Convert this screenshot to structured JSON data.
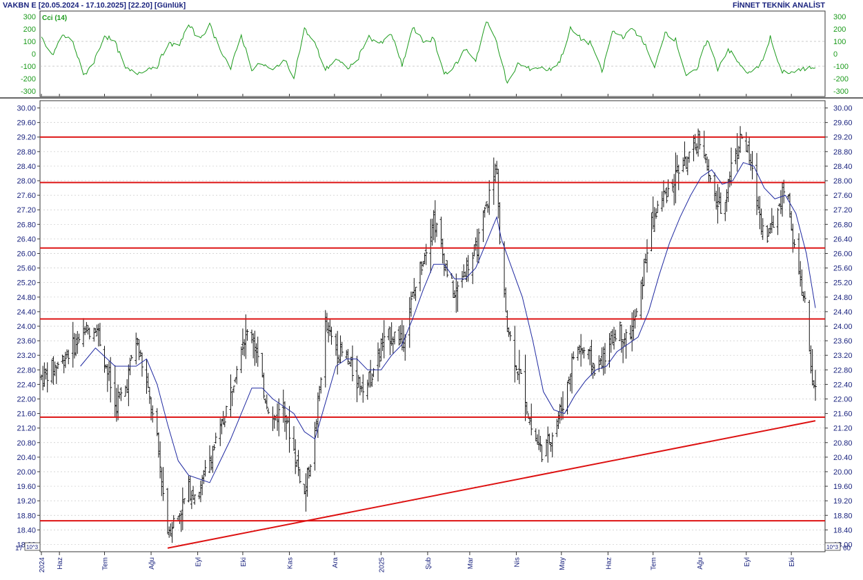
{
  "header": {
    "title": "VAKBN E  [20.05.2024 - 17.10.2025]  [22.20]  [Günlük]",
    "brand": "FİNNET TEKNİK ANALİST"
  },
  "indicator": {
    "label": "Cci (14)",
    "ticks": [
      "300",
      "200",
      "100",
      "0",
      "-100",
      "-200",
      "-300"
    ],
    "tick_values": [
      300,
      200,
      100,
      0,
      -100,
      -200,
      -300
    ],
    "color": "#1a9a1a"
  },
  "price_axis": {
    "ticks": [
      "30.00",
      "29.60",
      "29.20",
      "28.80",
      "28.40",
      "28.00",
      "27.60",
      "27.20",
      "26.80",
      "26.40",
      "26.00",
      "25.60",
      "25.20",
      "24.80",
      "24.40",
      "24.00",
      "23.60",
      "23.20",
      "22.80",
      "22.40",
      "22.00",
      "21.60",
      "21.20",
      "20.80",
      "20.40",
      "20.00",
      "19.60",
      "19.20",
      "18.80",
      "18.40",
      "18.00"
    ],
    "multiplier_label": "10^3",
    "left_cut_label": "17",
    "right_cut_label": "60"
  },
  "time_axis": {
    "labels": [
      "2024",
      "Haz",
      "Tem",
      "Ağu",
      "Eyl",
      "Eki",
      "Kas",
      "Ara",
      "2025",
      "Şub",
      "Mar",
      "Nis",
      "May",
      "Haz",
      "Tem",
      "Ağu",
      "Eyl",
      "Eki"
    ]
  },
  "chart_data": {
    "type": "bar",
    "symbol": "VAKBN E",
    "period": "20.05.2024 - 17.10.2025",
    "last_price": 22.2,
    "interval": "Günlük",
    "ylim": [
      17.8,
      30.2
    ],
    "grid": true,
    "horizontal_levels": [
      29.2,
      27.95,
      26.15,
      24.2,
      21.5,
      18.65
    ],
    "trendline": {
      "start": {
        "date": "2024-08-12",
        "value": 17.9
      },
      "end": {
        "date": "2025-10-17",
        "value": 21.4
      }
    },
    "moving_average_color": "#1e28a0",
    "level_color": "#dd1111",
    "cci_ylim": [
      -300,
      300
    ],
    "price_path": [
      [
        "2024-05-20",
        22.6
      ],
      [
        "2024-06-01",
        23.0
      ],
      [
        "2024-06-15",
        23.7
      ],
      [
        "2024-06-25",
        24.1
      ],
      [
        "2024-07-01",
        23.1
      ],
      [
        "2024-07-08",
        21.8
      ],
      [
        "2024-07-15",
        22.3
      ],
      [
        "2024-07-22",
        23.7
      ],
      [
        "2024-07-29",
        22.4
      ],
      [
        "2024-08-05",
        20.8
      ],
      [
        "2024-08-12",
        18.4
      ],
      [
        "2024-08-19",
        18.8
      ],
      [
        "2024-08-26",
        19.5
      ],
      [
        "2024-09-02",
        19.4
      ],
      [
        "2024-09-09",
        20.4
      ],
      [
        "2024-09-16",
        21.1
      ],
      [
        "2024-09-23",
        22.2
      ],
      [
        "2024-09-30",
        23.6
      ],
      [
        "2024-10-07",
        23.9
      ],
      [
        "2024-10-14",
        22.4
      ],
      [
        "2024-10-21",
        21.4
      ],
      [
        "2024-10-28",
        21.8
      ],
      [
        "2024-11-04",
        20.6
      ],
      [
        "2024-11-11",
        19.4
      ],
      [
        "2024-11-18",
        21.0
      ],
      [
        "2024-11-25",
        24.0
      ],
      [
        "2024-12-02",
        23.4
      ],
      [
        "2024-12-09",
        23.1
      ],
      [
        "2024-12-16",
        22.5
      ],
      [
        "2024-12-23",
        22.4
      ],
      [
        "2025-01-01",
        23.4
      ],
      [
        "2025-01-08",
        23.8
      ],
      [
        "2025-01-15",
        23.6
      ],
      [
        "2025-01-22",
        24.8
      ],
      [
        "2025-01-29",
        25.9
      ],
      [
        "2025-02-05",
        27.0
      ],
      [
        "2025-02-12",
        25.8
      ],
      [
        "2025-02-19",
        24.8
      ],
      [
        "2025-02-26",
        25.6
      ],
      [
        "2025-03-05",
        26.0
      ],
      [
        "2025-03-12",
        27.3
      ],
      [
        "2025-03-19",
        28.4
      ],
      [
        "2025-03-22",
        25.2
      ],
      [
        "2025-03-29",
        23.4
      ],
      [
        "2025-04-05",
        22.4
      ],
      [
        "2025-04-12",
        21.0
      ],
      [
        "2025-04-19",
        20.5
      ],
      [
        "2025-04-26",
        21.2
      ],
      [
        "2025-05-03",
        22.0
      ],
      [
        "2025-05-10",
        23.4
      ],
      [
        "2025-05-17",
        23.3
      ],
      [
        "2025-05-24",
        22.8
      ],
      [
        "2025-05-31",
        23.3
      ],
      [
        "2025-06-07",
        24.0
      ],
      [
        "2025-06-14",
        23.6
      ],
      [
        "2025-06-21",
        24.4
      ],
      [
        "2025-06-28",
        26.5
      ],
      [
        "2025-07-05",
        27.4
      ],
      [
        "2025-07-12",
        27.8
      ],
      [
        "2025-07-19",
        28.4
      ],
      [
        "2025-07-26",
        28.6
      ],
      [
        "2025-08-02",
        29.3
      ],
      [
        "2025-08-09",
        27.6
      ],
      [
        "2025-08-16",
        27.2
      ],
      [
        "2025-08-23",
        28.6
      ],
      [
        "2025-08-30",
        29.3
      ],
      [
        "2025-09-06",
        28.0
      ],
      [
        "2025-09-13",
        26.4
      ],
      [
        "2025-09-20",
        26.9
      ],
      [
        "2025-09-27",
        28.0
      ],
      [
        "2025-10-04",
        25.8
      ],
      [
        "2025-10-11",
        24.4
      ],
      [
        "2025-10-14",
        22.6
      ],
      [
        "2025-10-17",
        22.2
      ]
    ],
    "ma_path": [
      [
        "2024-06-15",
        22.9
      ],
      [
        "2024-06-25",
        23.4
      ],
      [
        "2024-07-08",
        22.9
      ],
      [
        "2024-07-22",
        22.9
      ],
      [
        "2024-07-29",
        23.1
      ],
      [
        "2024-08-05",
        22.4
      ],
      [
        "2024-08-12",
        21.3
      ],
      [
        "2024-08-19",
        20.3
      ],
      [
        "2024-08-26",
        19.9
      ],
      [
        "2024-09-02",
        19.8
      ],
      [
        "2024-09-09",
        19.7
      ],
      [
        "2024-09-16",
        20.3
      ],
      [
        "2024-09-23",
        20.9
      ],
      [
        "2024-09-30",
        21.6
      ],
      [
        "2024-10-07",
        22.3
      ],
      [
        "2024-10-14",
        22.3
      ],
      [
        "2024-10-21",
        22.0
      ],
      [
        "2024-10-28",
        21.8
      ],
      [
        "2024-11-04",
        21.6
      ],
      [
        "2024-11-11",
        21.1
      ],
      [
        "2024-11-18",
        20.9
      ],
      [
        "2024-11-25",
        21.9
      ],
      [
        "2024-12-02",
        22.9
      ],
      [
        "2024-12-09",
        23.1
      ],
      [
        "2024-12-16",
        23.1
      ],
      [
        "2024-12-23",
        22.8
      ],
      [
        "2025-01-01",
        22.8
      ],
      [
        "2025-01-08",
        23.2
      ],
      [
        "2025-01-15",
        23.5
      ],
      [
        "2025-01-22",
        24.2
      ],
      [
        "2025-01-29",
        25.0
      ],
      [
        "2025-02-05",
        25.7
      ],
      [
        "2025-02-12",
        25.7
      ],
      [
        "2025-02-19",
        25.3
      ],
      [
        "2025-02-26",
        25.3
      ],
      [
        "2025-03-05",
        25.6
      ],
      [
        "2025-03-12",
        26.3
      ],
      [
        "2025-03-19",
        27.0
      ],
      [
        "2025-03-22",
        26.4
      ],
      [
        "2025-03-29",
        25.6
      ],
      [
        "2025-04-05",
        24.8
      ],
      [
        "2025-04-12",
        23.6
      ],
      [
        "2025-04-19",
        22.2
      ],
      [
        "2025-04-26",
        21.7
      ],
      [
        "2025-05-03",
        21.6
      ],
      [
        "2025-05-10",
        22.1
      ],
      [
        "2025-05-17",
        22.5
      ],
      [
        "2025-05-24",
        22.8
      ],
      [
        "2025-05-31",
        22.9
      ],
      [
        "2025-06-07",
        23.3
      ],
      [
        "2025-06-14",
        23.5
      ],
      [
        "2025-06-21",
        23.7
      ],
      [
        "2025-06-28",
        24.4
      ],
      [
        "2025-07-05",
        25.4
      ],
      [
        "2025-07-12",
        26.3
      ],
      [
        "2025-07-19",
        27.0
      ],
      [
        "2025-07-26",
        27.6
      ],
      [
        "2025-08-02",
        28.1
      ],
      [
        "2025-08-09",
        28.3
      ],
      [
        "2025-08-16",
        27.9
      ],
      [
        "2025-08-23",
        28.0
      ],
      [
        "2025-08-30",
        28.5
      ],
      [
        "2025-09-06",
        28.4
      ],
      [
        "2025-09-13",
        27.8
      ],
      [
        "2025-09-20",
        27.5
      ],
      [
        "2025-09-27",
        27.6
      ],
      [
        "2025-10-04",
        27.1
      ],
      [
        "2025-10-11",
        26.0
      ],
      [
        "2025-10-17",
        24.5
      ]
    ],
    "cci_path": [
      [
        "2024-05-20",
        130
      ],
      [
        "2024-05-27",
        -20
      ],
      [
        "2024-06-03",
        150
      ],
      [
        "2024-06-10",
        100
      ],
      [
        "2024-06-17",
        -180
      ],
      [
        "2024-06-24",
        -60
      ],
      [
        "2024-07-01",
        150
      ],
      [
        "2024-07-08",
        90
      ],
      [
        "2024-07-15",
        -120
      ],
      [
        "2024-07-22",
        -160
      ],
      [
        "2024-07-29",
        -120
      ],
      [
        "2024-08-05",
        -100
      ],
      [
        "2024-08-12",
        80
      ],
      [
        "2024-08-19",
        60
      ],
      [
        "2024-08-26",
        230
      ],
      [
        "2024-09-02",
        120
      ],
      [
        "2024-09-09",
        230
      ],
      [
        "2024-09-16",
        40
      ],
      [
        "2024-09-23",
        -120
      ],
      [
        "2024-09-30",
        150
      ],
      [
        "2024-10-07",
        -120
      ],
      [
        "2024-10-14",
        -80
      ],
      [
        "2024-10-21",
        -140
      ],
      [
        "2024-10-28",
        -40
      ],
      [
        "2024-11-04",
        -180
      ],
      [
        "2024-11-11",
        200
      ],
      [
        "2024-11-18",
        80
      ],
      [
        "2024-11-25",
        -130
      ],
      [
        "2024-12-02",
        -40
      ],
      [
        "2024-12-09",
        -120
      ],
      [
        "2024-12-16",
        -60
      ],
      [
        "2024-12-23",
        140
      ],
      [
        "2025-01-01",
        80
      ],
      [
        "2025-01-08",
        160
      ],
      [
        "2025-01-15",
        -100
      ],
      [
        "2025-01-22",
        210
      ],
      [
        "2025-01-29",
        100
      ],
      [
        "2025-02-05",
        120
      ],
      [
        "2025-02-12",
        -160
      ],
      [
        "2025-02-19",
        -100
      ],
      [
        "2025-02-26",
        40
      ],
      [
        "2025-03-05",
        -50
      ],
      [
        "2025-03-12",
        260
      ],
      [
        "2025-03-19",
        100
      ],
      [
        "2025-03-26",
        -250
      ],
      [
        "2025-04-02",
        -80
      ],
      [
        "2025-04-09",
        -120
      ],
      [
        "2025-04-16",
        -110
      ],
      [
        "2025-04-23",
        -130
      ],
      [
        "2025-04-30",
        -60
      ],
      [
        "2025-05-07",
        200
      ],
      [
        "2025-05-14",
        120
      ],
      [
        "2025-05-21",
        80
      ],
      [
        "2025-05-28",
        -150
      ],
      [
        "2025-06-04",
        180
      ],
      [
        "2025-06-11",
        140
      ],
      [
        "2025-06-18",
        200
      ],
      [
        "2025-06-25",
        90
      ],
      [
        "2025-07-02",
        -120
      ],
      [
        "2025-07-09",
        180
      ],
      [
        "2025-07-16",
        110
      ],
      [
        "2025-07-23",
        -170
      ],
      [
        "2025-07-30",
        -140
      ],
      [
        "2025-08-06",
        120
      ],
      [
        "2025-08-13",
        -120
      ],
      [
        "2025-08-20",
        40
      ],
      [
        "2025-08-27",
        -80
      ],
      [
        "2025-09-03",
        -160
      ],
      [
        "2025-09-10",
        -100
      ],
      [
        "2025-09-17",
        130
      ],
      [
        "2025-09-24",
        -140
      ],
      [
        "2025-10-01",
        -150
      ],
      [
        "2025-10-08",
        -130
      ],
      [
        "2025-10-17",
        -100
      ]
    ]
  }
}
